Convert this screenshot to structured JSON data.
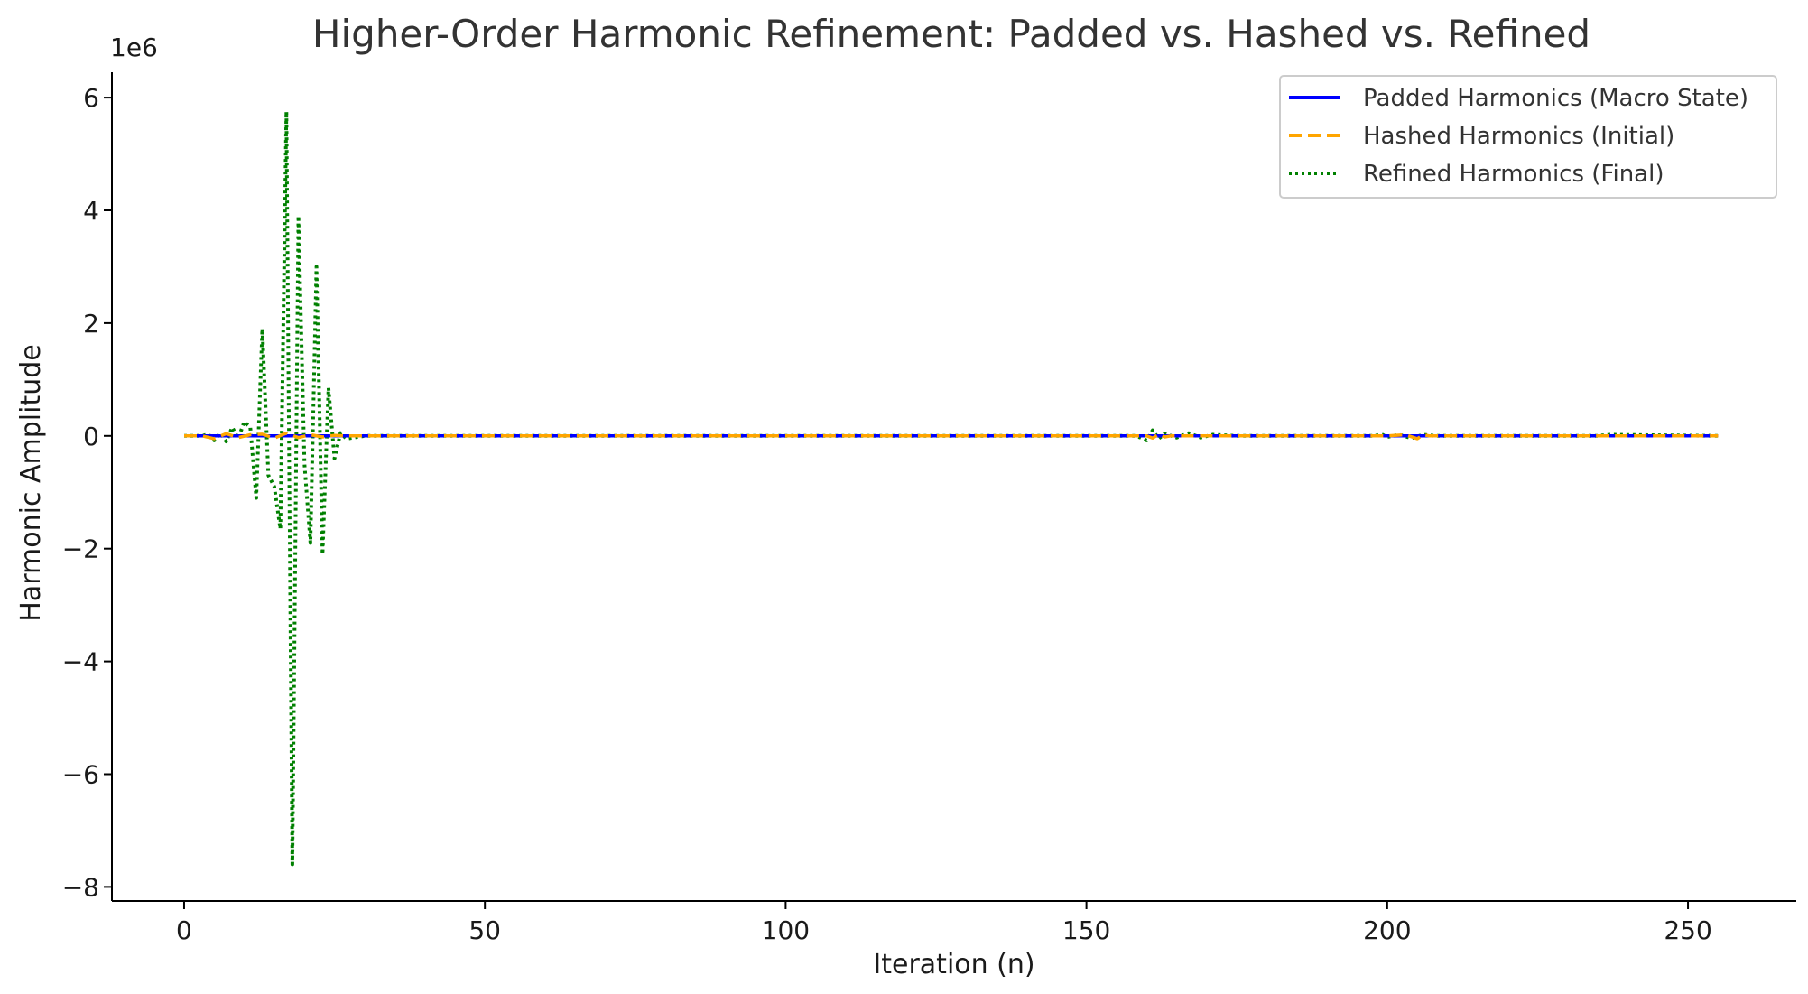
{
  "chart_data": {
    "type": "line",
    "title": "Higher-Order Harmonic Refinement: Padded vs. Hashed vs. Refined",
    "xlabel": "Iteration (n)",
    "ylabel": "Harmonic Amplitude",
    "y_offset_label": "1e6",
    "xlim": [
      -12,
      268
    ],
    "ylim": [
      -8.25,
      6.45
    ],
    "xticks": [
      0,
      50,
      100,
      150,
      200,
      250
    ],
    "yticks": [
      -8,
      -6,
      -4,
      -2,
      0,
      2,
      4,
      6
    ],
    "ytick_labels": [
      "−8",
      "−6",
      "−4",
      "−2",
      "0",
      "2",
      "4",
      "6"
    ],
    "grid": false,
    "legend_position": "top-right",
    "series": [
      {
        "name": "Padded Harmonics (Macro State)",
        "color": "#0000ff",
        "style": "solid",
        "x": [
          0,
          255
        ],
        "y": [
          0,
          0
        ]
      },
      {
        "name": "Hashed Harmonics (Initial)",
        "color": "#ffa500",
        "style": "dashed",
        "x": [
          0,
          3,
          5,
          7,
          9,
          11,
          13,
          15,
          17,
          19,
          21,
          23,
          25,
          27,
          30,
          160,
          161,
          162,
          163,
          164,
          200,
          203,
          205,
          206,
          207,
          255
        ],
        "y": [
          0,
          0,
          -0.05,
          0.04,
          -0.03,
          0.02,
          0.03,
          -0.04,
          0.05,
          -0.03,
          0.02,
          -0.02,
          0.01,
          0,
          0,
          0,
          -0.04,
          0.03,
          -0.02,
          0,
          0,
          0.02,
          -0.05,
          0.02,
          0,
          0
        ]
      },
      {
        "name": "Refined Harmonics (Final)",
        "color": "#008000",
        "style": "dotted",
        "x": [
          0,
          3,
          4,
          5,
          6,
          7,
          8,
          9,
          10,
          11,
          12,
          13,
          14,
          15,
          16,
          17,
          18,
          19,
          20,
          21,
          22,
          23,
          24,
          25,
          26,
          27,
          30,
          158,
          159,
          160,
          161,
          162,
          163,
          165,
          167,
          169,
          171,
          175,
          198,
          199,
          200,
          202,
          204,
          206,
          208,
          235,
          237,
          255
        ],
        "y": [
          0,
          0,
          0.03,
          -0.08,
          0.05,
          -0.1,
          0.15,
          -0.05,
          0.25,
          0.15,
          -1.1,
          1.9,
          -0.7,
          -0.9,
          -1.65,
          5.75,
          -7.6,
          3.9,
          -0.5,
          -1.9,
          3.0,
          -2.1,
          0.85,
          -0.4,
          0.05,
          -0.05,
          0,
          0,
          -0.03,
          -0.08,
          0.1,
          -0.05,
          0.04,
          -0.03,
          0.05,
          -0.03,
          0.02,
          0,
          0,
          0.03,
          -0.02,
          0.02,
          -0.04,
          0.02,
          0,
          0,
          0.02,
          0
        ]
      }
    ]
  }
}
